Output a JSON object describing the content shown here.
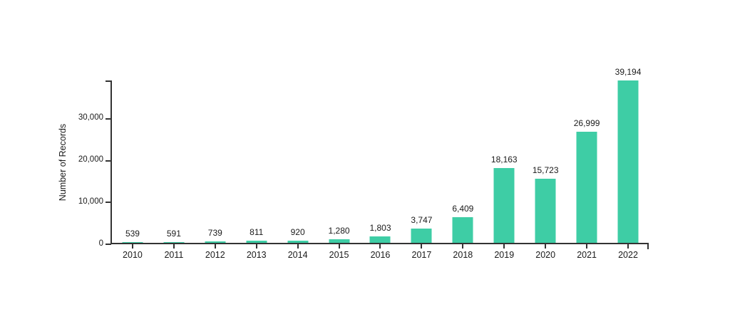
{
  "chart_data": {
    "type": "bar",
    "categories": [
      "2010",
      "2011",
      "2012",
      "2013",
      "2014",
      "2015",
      "2016",
      "2017",
      "2018",
      "2019",
      "2020",
      "2021",
      "2022"
    ],
    "values": [
      539,
      591,
      739,
      811,
      920,
      1280,
      1803,
      3747,
      6409,
      18163,
      15723,
      26999,
      39194
    ],
    "value_labels": [
      "539",
      "591",
      "739",
      "811",
      "920",
      "1,280",
      "1,803",
      "3,747",
      "6,409",
      "18,163",
      "15,723",
      "26,999",
      "39,194"
    ],
    "title": "",
    "xlabel": "",
    "ylabel": "Number of Records",
    "ylim": [
      0,
      39194
    ],
    "yticks": [
      0,
      10000,
      20000,
      30000
    ],
    "ytick_labels": [
      "0",
      "10,000",
      "20,000",
      "30,000"
    ],
    "grid": false,
    "legend": "none",
    "colors": {
      "bar": "#3ecda5",
      "axis": "#333333",
      "text": "#1a1a1a",
      "background": "#ffffff"
    }
  }
}
